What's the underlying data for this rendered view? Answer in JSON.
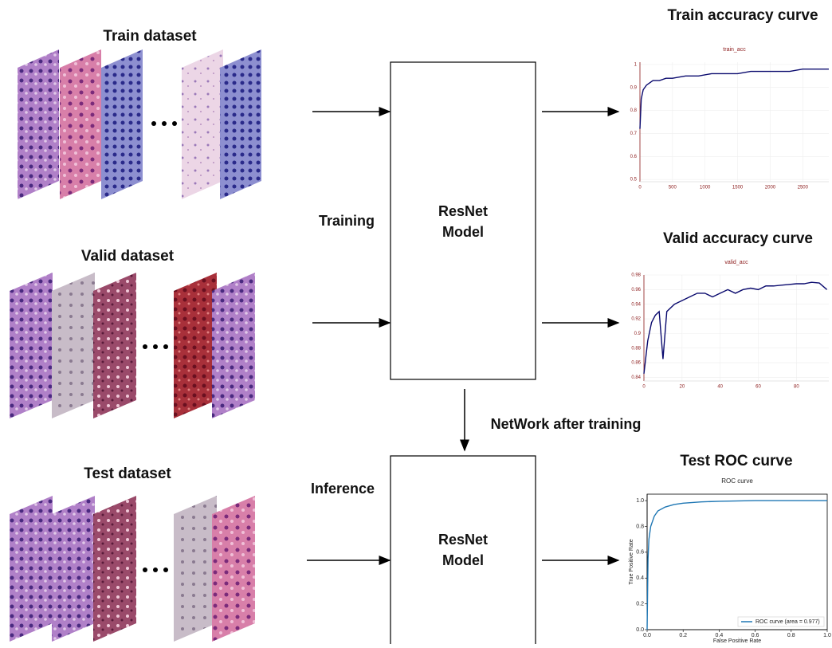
{
  "labels": {
    "train_dataset": "Train dataset",
    "valid_dataset": "Valid dataset",
    "test_dataset": "Test dataset",
    "training": "Training",
    "inference": "Inference",
    "model_top_line1": "ResNet",
    "model_top_line2": "Model",
    "model_bottom_line1": "ResNet",
    "model_bottom_line2": "Model",
    "network_after_training": "NetWork after training",
    "train_curve": "Train accuracy curve",
    "valid_curve": "Valid accuracy curve",
    "test_curve": "Test ROC curve"
  },
  "chart_data": [
    {
      "type": "line",
      "title": "train_acc",
      "grid": true,
      "x": [
        0,
        20,
        50,
        100,
        150,
        200,
        300,
        400,
        500,
        700,
        900,
        1100,
        1300,
        1500,
        1700,
        1900,
        2100,
        2300,
        2500,
        2700,
        2900
      ],
      "series": [
        {
          "color": "#0a0a6e",
          "values": [
            0.72,
            0.85,
            0.89,
            0.91,
            0.92,
            0.93,
            0.93,
            0.94,
            0.94,
            0.95,
            0.95,
            0.96,
            0.96,
            0.96,
            0.97,
            0.97,
            0.97,
            0.97,
            0.98,
            0.98,
            0.98
          ]
        }
      ],
      "xlim": [
        0,
        2900
      ],
      "xticks": [
        0,
        500,
        1000,
        1500,
        2000,
        2500
      ],
      "ylim": [
        0.49,
        1.01
      ],
      "yticks": [
        0.5,
        0.6,
        0.7,
        0.8,
        0.9,
        1
      ]
    },
    {
      "type": "line",
      "title": "valid_acc",
      "grid": true,
      "x": [
        0,
        2,
        4,
        6,
        8,
        10,
        12,
        16,
        20,
        24,
        28,
        32,
        36,
        40,
        44,
        48,
        52,
        56,
        60,
        64,
        68,
        72,
        76,
        80,
        84,
        88,
        92,
        96
      ],
      "series": [
        {
          "color": "#0a0a6e",
          "values": [
            0.845,
            0.89,
            0.915,
            0.925,
            0.93,
            0.865,
            0.93,
            0.94,
            0.945,
            0.95,
            0.955,
            0.955,
            0.95,
            0.955,
            0.96,
            0.955,
            0.96,
            0.962,
            0.96,
            0.965,
            0.965,
            0.966,
            0.967,
            0.968,
            0.968,
            0.97,
            0.969,
            0.96
          ]
        }
      ],
      "xlim": [
        0,
        97
      ],
      "xticks": [
        0,
        20,
        40,
        60,
        80
      ],
      "ylim": [
        0.835,
        0.98
      ],
      "yticks": [
        0.84,
        0.86,
        0.88,
        0.9,
        0.92,
        0.94,
        0.96,
        0.98
      ]
    },
    {
      "type": "line",
      "title": "ROC curve",
      "grid": false,
      "frame": true,
      "x_label": "False Positive Rate",
      "y_label": "True Positive Rate",
      "legend": "lower right",
      "x": [
        0,
        0.005,
        0.01,
        0.02,
        0.04,
        0.06,
        0.1,
        0.15,
        0.2,
        0.3,
        0.4,
        0.6,
        0.8,
        1.0
      ],
      "series": [
        {
          "name": "ROC curve (area = 0.977)",
          "color": "#1f77b4",
          "values": [
            0,
            0.55,
            0.7,
            0.8,
            0.88,
            0.92,
            0.95,
            0.97,
            0.98,
            0.99,
            0.995,
            1.0,
            1.0,
            1.0
          ]
        }
      ],
      "xlim": [
        0,
        1
      ],
      "xticks": [
        {
          "value": 0,
          "label": "0.0"
        },
        {
          "value": 0.2,
          "label": "0.2"
        },
        {
          "value": 0.4,
          "label": "0.4"
        },
        {
          "value": 0.6,
          "label": "0.6"
        },
        {
          "value": 0.8,
          "label": "0.8"
        },
        {
          "value": 1,
          "label": "1.0"
        }
      ],
      "ylim": [
        0,
        1.05
      ],
      "yticks": [
        {
          "value": 0,
          "label": "0.0"
        },
        {
          "value": 0.2,
          "label": "0.2"
        },
        {
          "value": 0.4,
          "label": "0.4"
        },
        {
          "value": 0.6,
          "label": "0.6"
        },
        {
          "value": 0.8,
          "label": "0.8"
        },
        {
          "value": 1,
          "label": "1.0"
        }
      ]
    }
  ]
}
